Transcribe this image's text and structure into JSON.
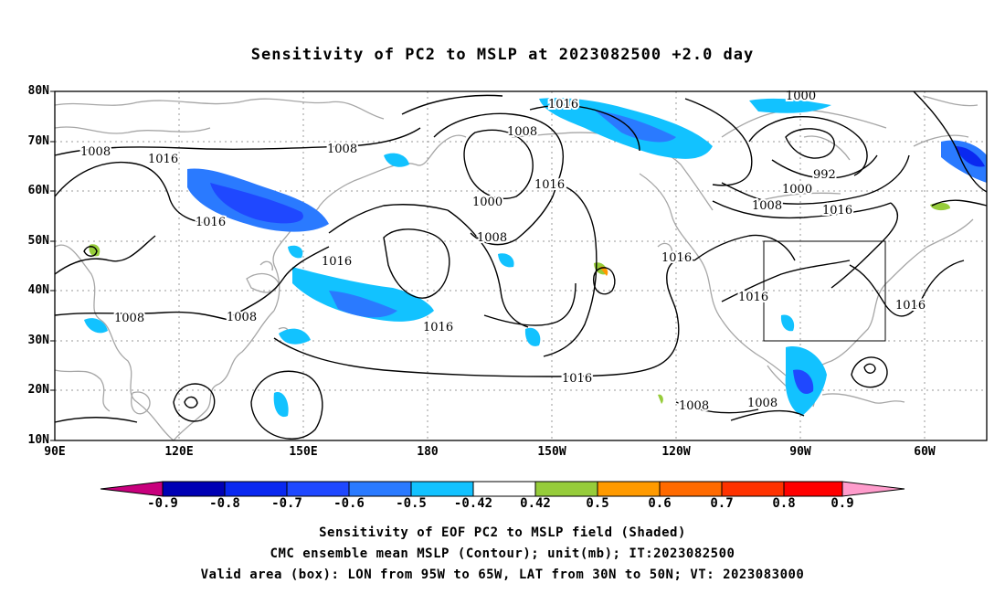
{
  "title": "Sensitivity of PC2 to MSLP at 2023082500 +2.0 day",
  "lat_labels": [
    "80N",
    "70N",
    "60N",
    "50N",
    "40N",
    "30N",
    "20N",
    "10N"
  ],
  "lon_labels": [
    "90E",
    "120E",
    "150E",
    "180",
    "150W",
    "120W",
    "90W",
    "60W"
  ],
  "contour_labels": [
    "1016",
    "1000",
    "1008",
    "1008",
    "1008",
    "1016",
    "1016",
    "992",
    "1000",
    "1008",
    "1016",
    "1000",
    "1016",
    "1016",
    "1008",
    "1008",
    "1016",
    "1016",
    "1016",
    "1016",
    "1016",
    "1008",
    "1008"
  ],
  "colorbar": {
    "labels": [
      "-0.9",
      "-0.8",
      "-0.7",
      "-0.6",
      "-0.5",
      "-0.42",
      "0.42",
      "0.5",
      "0.6",
      "0.7",
      "0.8",
      "0.9"
    ],
    "colors": [
      "#7d007d",
      "#0000b4",
      "#0a28f0",
      "#1f48ff",
      "#2a7aff",
      "#12c2ff",
      "#ffffff",
      "#96cc3a",
      "#ff9a00",
      "#ff6a00",
      "#ff3200",
      "#ff0000",
      "#ff9ccc"
    ]
  },
  "captions": [
    "Sensitivity of EOF PC2 to MSLP field (Shaded)",
    "CMC ensemble mean MSLP (Contour); unit(mb); IT:2023082500",
    "Valid area (box): LON from 95W to 65W, LAT from 30N to 50N; VT: 2023083000"
  ]
}
